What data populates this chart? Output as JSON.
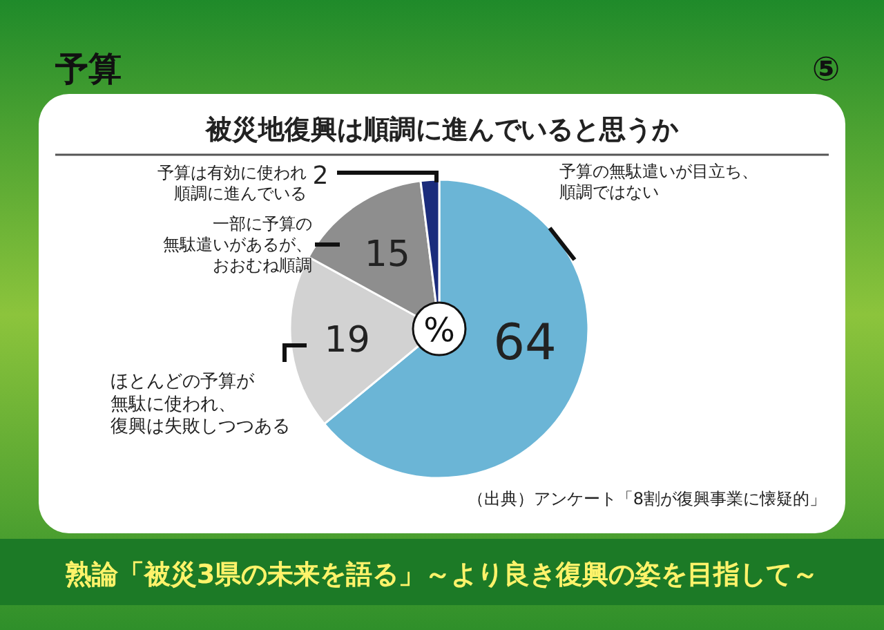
{
  "chart_data": {
    "type": "pie",
    "title": "被災地復興は順調に進んでいると思うか",
    "categories": [
      "予算の無駄遣いが目立ち、順調ではない",
      "ほとんどの予算が無駄に使われ、復興は失敗しつつある",
      "一部に予算の無駄遣いがあるが、おおむね順調",
      "予算は有効に使われ順調に進んでいる"
    ],
    "values": [
      64,
      19,
      15,
      2
    ],
    "colors": [
      "#6bb5d6",
      "#d2d2d2",
      "#8e8e8e",
      "#1b2c7c"
    ],
    "data_labels": true,
    "annotations": [
      "予算",
      "⑤",
      "%",
      "（出典）アンケート「8割が復興事業に懐疑的」",
      "熟論「被災3県の未来を語る」～より良き復興の姿を目指して～"
    ]
  }
}
